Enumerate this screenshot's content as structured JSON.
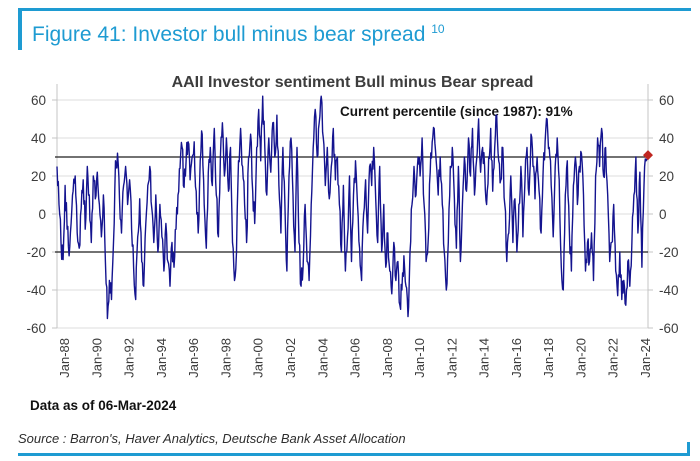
{
  "figure": {
    "title": "Figure 41: Investor bull minus bear spread",
    "title_superscript": "10",
    "accent_color": "#1e9bd2"
  },
  "chart_data": {
    "type": "line",
    "title": "AAII Investor sentiment Bull minus Bear spread",
    "annotation": "Current percentile (since 1987): 91%",
    "xlabel": "",
    "ylabel": "",
    "ylim": [
      -60,
      60
    ],
    "y_ticks": [
      60,
      40,
      20,
      0,
      -20,
      -40,
      -60
    ],
    "y_axis_sides": "both",
    "grid": true,
    "x_tick_labels": [
      "Jan-88",
      "Jan-90",
      "Jan-92",
      "Jan-94",
      "Jan-96",
      "Jan-98",
      "Jan-00",
      "Jan-02",
      "Jan-04",
      "Jan-06",
      "Jan-08",
      "Jan-10",
      "Jan-12",
      "Jan-14",
      "Jan-16",
      "Jan-18",
      "Jan-20",
      "Jan-22",
      "Jan-24"
    ],
    "x_start": "Jul-87",
    "x_end": "Mar-24",
    "points_per_year": 8,
    "first_tick_index": 4,
    "tick_step_indices": 16,
    "reference_lines": [
      30,
      -20
    ],
    "reference_line_color": "#1f1f1f",
    "line_color": "#14148f",
    "grid_color": "#dcdcdc",
    "axis_color": "#c4c4c4",
    "tick_label_color": "#3c3c3c",
    "latest_marker": {
      "shape": "diamond",
      "color": "#bf2620",
      "value": 31,
      "date": "Mar-24"
    },
    "render_noise": {
      "upsample": 3,
      "amplitude": 6.5,
      "seed": 7,
      "clamp": [
        -57,
        62
      ]
    },
    "series": [
      {
        "name": "AAII Bull minus Bear spread (%)",
        "values": [
          25,
          5,
          -15,
          -24,
          15,
          -8,
          -22,
          -5,
          12,
          20,
          -10,
          -18,
          3,
          18,
          -8,
          25,
          10,
          -15,
          20,
          8,
          22,
          5,
          -12,
          10,
          -25,
          -55,
          -35,
          -45,
          -15,
          28,
          32,
          8,
          -10,
          15,
          25,
          5,
          18,
          -8,
          -28,
          -45,
          -12,
          8,
          -25,
          -38,
          -5,
          15,
          25,
          3,
          -15,
          10,
          -20,
          5,
          -12,
          -30,
          -5,
          -25,
          -38,
          -15,
          -28,
          -8,
          10,
          24,
          35,
          14,
          28,
          38,
          18,
          30,
          38,
          12,
          -10,
          28,
          42,
          5,
          -18,
          22,
          35,
          15,
          45,
          10,
          -12,
          30,
          48,
          20,
          40,
          12,
          35,
          -15,
          -35,
          -20,
          28,
          45,
          25,
          5,
          -15,
          30,
          42,
          12,
          -5,
          35,
          55,
          28,
          62,
          35,
          10,
          40,
          22,
          48,
          30,
          52,
          15,
          -10,
          35,
          5,
          -30,
          20,
          40,
          10,
          -20,
          35,
          -15,
          -38,
          -28,
          5,
          -25,
          -35,
          5,
          35,
          55,
          30,
          48,
          62,
          40,
          15,
          35,
          8,
          25,
          45,
          18,
          30,
          5,
          -20,
          15,
          -30,
          -12,
          20,
          -25,
          10,
          28,
          5,
          -18,
          -35,
          0,
          18,
          -10,
          25,
          15,
          35,
          8,
          -15,
          25,
          -20,
          5,
          -28,
          -10,
          -30,
          -42,
          -15,
          -35,
          -25,
          -48,
          -40,
          -22,
          -38,
          -54,
          -20,
          5,
          25,
          10,
          30,
          20,
          40,
          5,
          -25,
          -15,
          22,
          38,
          45,
          28,
          10,
          30,
          5,
          -20,
          -40,
          -15,
          25,
          35,
          8,
          -18,
          25,
          -25,
          5,
          30,
          12,
          40,
          20,
          45,
          10,
          28,
          50,
          22,
          35,
          25,
          5,
          30,
          45,
          12,
          35,
          52,
          28,
          18,
          35,
          5,
          -25,
          -10,
          20,
          -15,
          8,
          -20,
          5,
          25,
          -12,
          18,
          35,
          10,
          42,
          25,
          8,
          30,
          12,
          -10,
          22,
          38,
          50,
          35,
          15,
          -12,
          25,
          40,
          18,
          -28,
          -40,
          10,
          28,
          -8,
          -30,
          15,
          30,
          5,
          25,
          32,
          10,
          -30,
          -15,
          -25,
          -10,
          -35,
          20,
          40,
          25,
          45,
          20,
          35,
          10,
          -25,
          -15,
          5,
          -30,
          -43,
          -20,
          -45,
          -35,
          -48,
          -25,
          -38,
          -15,
          10,
          30,
          -10,
          22,
          -28,
          15,
          28,
          31
        ]
      }
    ]
  },
  "footer": {
    "data_as_of": "Data as of 06-Mar-2024",
    "source": "Source : Barron's, Haver Analytics, Deutsche Bank Asset Allocation"
  }
}
